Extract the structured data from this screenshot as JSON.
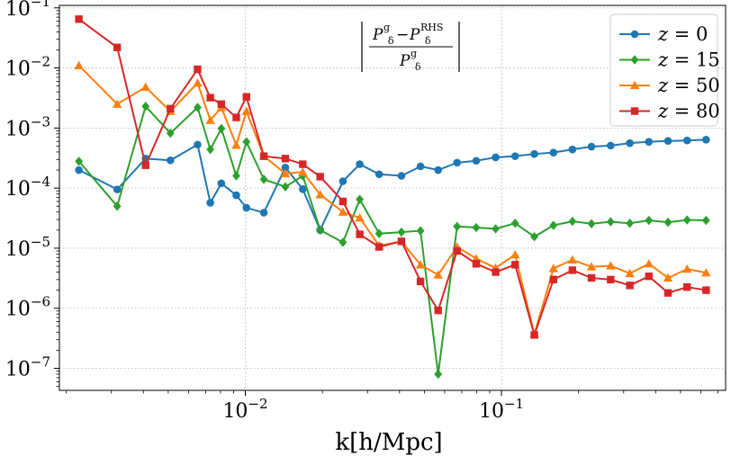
{
  "chart_data": {
    "type": "line",
    "title": "",
    "annotation": {
      "numerator_left": "P",
      "numerator_left_sup": "g",
      "numerator_left_sub": "δ",
      "minus": "−",
      "numerator_right": "P",
      "numerator_right_sup": "RHS",
      "numerator_right_sub": "δ",
      "denominator": "P",
      "denominator_sup": "g",
      "denominator_sub": "δ"
    },
    "xlabel": "k[h/Mpc]",
    "ylabel": "",
    "xscale": "log",
    "yscale": "log",
    "xlim": [
      0.00188,
      0.75
    ],
    "ylim": [
      4.3e-08,
      0.11
    ],
    "grid": true,
    "legend_position": "top-right",
    "x_ticks": [
      {
        "value": 0.01,
        "base": "10",
        "exp": "−2"
      },
      {
        "value": 0.1,
        "base": "10",
        "exp": "−1"
      }
    ],
    "y_ticks": [
      {
        "value": 0.1,
        "base": "10",
        "exp": "−1"
      },
      {
        "value": 0.01,
        "base": "10",
        "exp": "−2"
      },
      {
        "value": 0.001,
        "base": "10",
        "exp": "−3"
      },
      {
        "value": 0.0001,
        "base": "10",
        "exp": "−4"
      },
      {
        "value": 1e-05,
        "base": "10",
        "exp": "−5"
      },
      {
        "value": 1e-06,
        "base": "10",
        "exp": "−6"
      },
      {
        "value": 1e-07,
        "base": "10",
        "exp": "−7"
      }
    ],
    "series": [
      {
        "name": "z = 0",
        "label_var": "z",
        "label_eq": "= 0",
        "color": "#1f77b4",
        "marker": "circle",
        "x": [
          0.00224,
          0.00316,
          0.00408,
          0.0051,
          0.00651,
          0.0073,
          0.00806,
          0.00922,
          0.0101,
          0.01181,
          0.01433,
          0.01676,
          0.0196,
          0.02405,
          0.02797,
          0.0333,
          0.0407,
          0.0483,
          0.0566,
          0.0671,
          0.0797,
          0.0949,
          0.1131,
          0.1344,
          0.1596,
          0.1893,
          0.2246,
          0.2669,
          0.3171,
          0.3763,
          0.447,
          0.5306,
          0.6293
        ],
        "y": [
          0.0002,
          9.5e-05,
          0.00031,
          0.00029,
          0.00053,
          5.7e-05,
          0.00012,
          7.6e-05,
          4.7e-05,
          3.9e-05,
          0.00022,
          9.6e-05,
          2e-05,
          0.00013,
          0.00025,
          0.00017,
          0.00016,
          0.00023,
          0.0002,
          0.000265,
          0.000285,
          0.000325,
          0.00034,
          0.00037,
          0.00039,
          0.00044,
          0.00049,
          0.00051,
          0.00056,
          0.00059,
          0.00061,
          0.00062,
          0.00064
        ]
      },
      {
        "name": "z = 15",
        "label_var": "z",
        "label_eq": "= 15",
        "color": "#2ca02c",
        "marker": "diamond",
        "x": [
          0.00224,
          0.00316,
          0.00408,
          0.0051,
          0.00651,
          0.0073,
          0.00806,
          0.00922,
          0.0101,
          0.01181,
          0.01433,
          0.01676,
          0.0196,
          0.02405,
          0.02797,
          0.0333,
          0.0407,
          0.0483,
          0.0566,
          0.0671,
          0.0797,
          0.0949,
          0.1131,
          0.1344,
          0.1596,
          0.1893,
          0.2246,
          0.2669,
          0.3171,
          0.3763,
          0.447,
          0.5306,
          0.6293
        ],
        "y": [
          0.00028,
          5e-05,
          0.0023,
          0.00082,
          0.0022,
          0.00044,
          0.00098,
          0.00016,
          0.00059,
          0.00014,
          0.000105,
          0.00016,
          2e-05,
          1.25e-05,
          6.5e-05,
          1.75e-05,
          1.85e-05,
          1.95e-05,
          8e-08,
          2.3e-05,
          2.2e-05,
          2.1e-05,
          2.6e-05,
          1.55e-05,
          2.4e-05,
          2.8e-05,
          2.55e-05,
          2.75e-05,
          2.6e-05,
          2.9e-05,
          2.7e-05,
          2.95e-05,
          2.9e-05
        ]
      },
      {
        "name": "z = 50",
        "label_var": "z",
        "label_eq": "= 50",
        "color": "#ff7f0e",
        "marker": "triangle",
        "x": [
          0.00224,
          0.00316,
          0.00408,
          0.0051,
          0.00651,
          0.0073,
          0.00806,
          0.00922,
          0.0101,
          0.01181,
          0.01433,
          0.01676,
          0.0196,
          0.02405,
          0.02797,
          0.0333,
          0.0407,
          0.0483,
          0.0566,
          0.0671,
          0.0797,
          0.0949,
          0.1131,
          0.1344,
          0.1596,
          0.1893,
          0.2246,
          0.2669,
          0.3171,
          0.3763,
          0.447,
          0.5306,
          0.6293
        ],
        "y": [
          0.011,
          0.0025,
          0.0048,
          0.0019,
          0.0056,
          0.00135,
          0.0022,
          0.00052,
          0.0019,
          0.00034,
          0.000175,
          0.000185,
          7.8e-05,
          4e-05,
          3.2e-05,
          1.1e-05,
          1.3e-05,
          5.3e-06,
          3.6e-06,
          1.05e-05,
          6.7e-06,
          4.7e-06,
          7.8e-06,
          3.7e-07,
          4.6e-06,
          6.4e-06,
          4.9e-06,
          5.1e-06,
          3.8e-06,
          5.5e-06,
          3.2e-06,
          4.5e-06,
          3.9e-06
        ]
      },
      {
        "name": "z = 80",
        "label_var": "z",
        "label_eq": "= 80",
        "color": "#d62728",
        "marker": "square",
        "x": [
          0.00224,
          0.00316,
          0.00408,
          0.0051,
          0.00651,
          0.0073,
          0.00806,
          0.00922,
          0.0101,
          0.01181,
          0.01433,
          0.01676,
          0.0196,
          0.02405,
          0.02797,
          0.0333,
          0.0407,
          0.0483,
          0.0566,
          0.0671,
          0.0797,
          0.0949,
          0.1131,
          0.1344,
          0.1596,
          0.1893,
          0.2246,
          0.2669,
          0.3171,
          0.3763,
          0.447,
          0.5306,
          0.6293
        ],
        "y": [
          0.065,
          0.022,
          0.00024,
          0.0021,
          0.0095,
          0.0032,
          0.0025,
          0.0015,
          0.0033,
          0.00034,
          0.00031,
          0.00025,
          0.000155,
          6e-05,
          1.7e-05,
          1.05e-05,
          1.3e-05,
          2.8e-06,
          9.2e-07,
          9e-06,
          5.5e-06,
          4e-06,
          5.3e-06,
          3.6e-07,
          3e-06,
          4.3e-06,
          3.2e-06,
          3e-06,
          2.4e-06,
          3.4e-06,
          1.8e-06,
          2.25e-06,
          2e-06
        ]
      }
    ]
  }
}
